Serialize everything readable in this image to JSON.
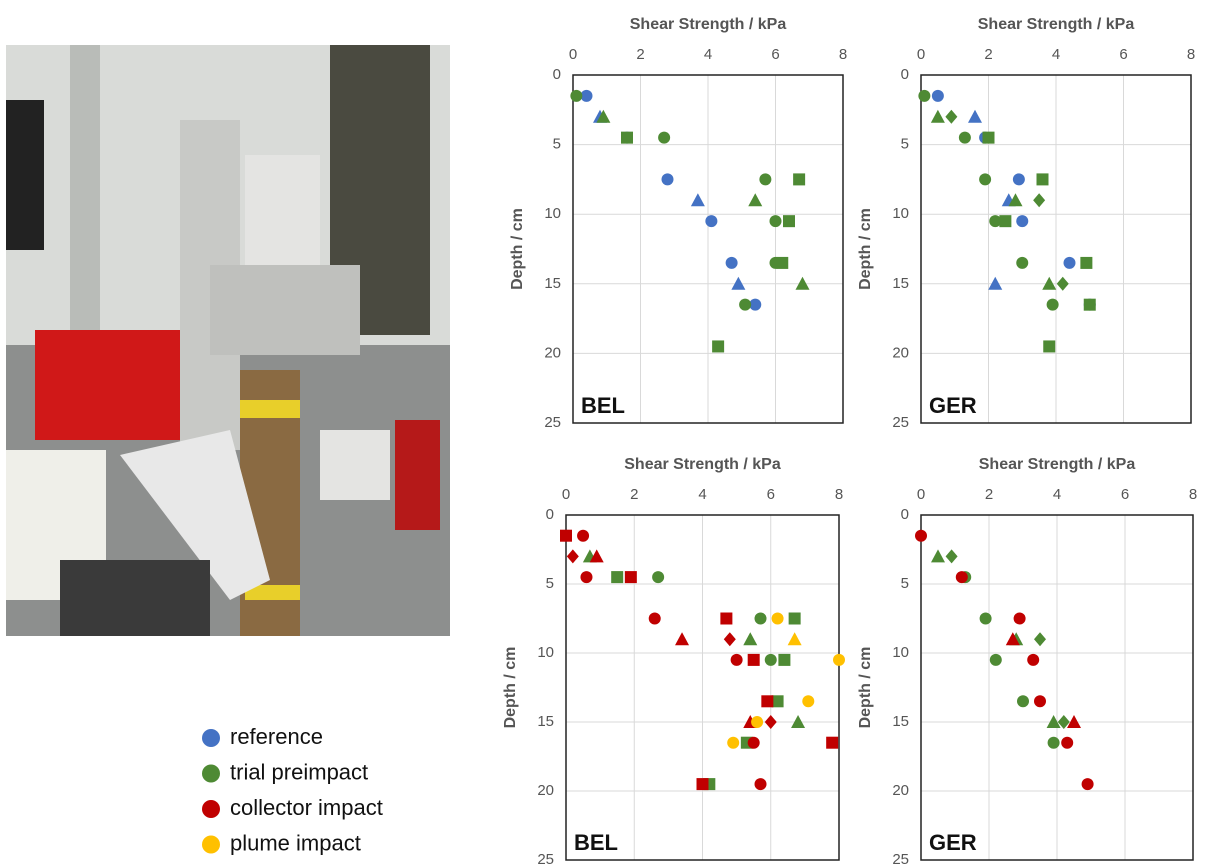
{
  "chart_data": [
    {
      "type": "scatter",
      "xlabel": "Shear Strength / kPa",
      "ylabel": "Depth / cm",
      "panel_label": "BEL",
      "xlim": [
        0,
        8
      ],
      "xticks": [
        0,
        2,
        4,
        6,
        8
      ],
      "ylim": [
        0,
        25
      ],
      "yticks": [
        0,
        5,
        10,
        15,
        20,
        25
      ],
      "y_inverted": true,
      "grid": true,
      "series": [
        {
          "color": "#4472c4",
          "marker": "circle",
          "x": [
            0.4,
            1.6,
            2.8,
            4.1,
            4.7,
            5.4
          ],
          "y": [
            1.5,
            4.5,
            7.5,
            10.5,
            13.5,
            16.5
          ]
        },
        {
          "color": "#4472c4",
          "marker": "triangle",
          "x": [
            0.8,
            3.7,
            4.9
          ],
          "y": [
            3,
            9,
            15
          ]
        },
        {
          "color": "#4e8a34",
          "marker": "circle",
          "x": [
            0.1,
            2.7,
            5.7,
            6.0,
            6.0,
            5.1
          ],
          "y": [
            1.5,
            4.5,
            7.5,
            10.5,
            13.5,
            16.5
          ]
        },
        {
          "color": "#4e8a34",
          "marker": "triangle",
          "x": [
            0.9,
            5.4,
            6.8
          ],
          "y": [
            3,
            9,
            15
          ]
        },
        {
          "color": "#4e8a34",
          "marker": "square",
          "x": [
            1.6,
            6.7,
            6.4,
            6.2,
            4.3
          ],
          "y": [
            4.5,
            7.5,
            10.5,
            13.5,
            19.5
          ]
        }
      ]
    },
    {
      "type": "scatter",
      "xlabel": "Shear Strength / kPa",
      "ylabel": "Depth / cm",
      "panel_label": "GER",
      "xlim": [
        0,
        8
      ],
      "xticks": [
        0,
        2,
        4,
        6,
        8
      ],
      "ylim": [
        0,
        25
      ],
      "yticks": [
        0,
        5,
        10,
        15,
        20,
        25
      ],
      "y_inverted": true,
      "grid": true,
      "series": [
        {
          "color": "#4472c4",
          "marker": "circle",
          "x": [
            0.5,
            1.9,
            2.9,
            3.0,
            4.4,
            5.0
          ],
          "y": [
            1.5,
            4.5,
            7.5,
            10.5,
            13.5,
            16.5
          ]
        },
        {
          "color": "#4472c4",
          "marker": "triangle",
          "x": [
            1.6,
            2.6,
            2.2
          ],
          "y": [
            3,
            9,
            15
          ]
        },
        {
          "color": "#4e8a34",
          "marker": "circle",
          "x": [
            0.1,
            1.3,
            1.9,
            2.2,
            3.0,
            3.9
          ],
          "y": [
            1.5,
            4.5,
            7.5,
            10.5,
            13.5,
            16.5
          ]
        },
        {
          "color": "#4e8a34",
          "marker": "triangle",
          "x": [
            0.5,
            2.8,
            3.8
          ],
          "y": [
            3,
            9,
            15
          ]
        },
        {
          "color": "#4e8a34",
          "marker": "diamond",
          "x": [
            0.9,
            3.5,
            4.2
          ],
          "y": [
            3,
            9,
            15
          ]
        },
        {
          "color": "#4e8a34",
          "marker": "square",
          "x": [
            2.0,
            3.6,
            2.5,
            4.9,
            5.0,
            3.8
          ],
          "y": [
            4.5,
            7.5,
            10.5,
            13.5,
            16.5,
            19.5
          ]
        }
      ]
    },
    {
      "type": "scatter",
      "xlabel": "Shear Strength / kPa",
      "ylabel": "Depth / cm",
      "panel_label": "BEL",
      "xlim": [
        0,
        8
      ],
      "xticks": [
        0,
        2,
        4,
        6,
        8
      ],
      "ylim": [
        0,
        25
      ],
      "yticks": [
        0,
        5,
        10,
        15,
        20,
        25
      ],
      "y_inverted": true,
      "grid": true,
      "series": [
        {
          "color": "#4e8a34",
          "marker": "circle",
          "x": [
            2.7,
            5.7,
            6.0
          ],
          "y": [
            4.5,
            7.5,
            10.5
          ]
        },
        {
          "color": "#4e8a34",
          "marker": "triangle",
          "x": [
            0.7,
            5.4,
            6.8
          ],
          "y": [
            3,
            9,
            15
          ]
        },
        {
          "color": "#4e8a34",
          "marker": "square",
          "x": [
            1.5,
            6.7,
            6.4,
            6.2,
            5.3,
            4.2
          ],
          "y": [
            4.5,
            7.5,
            10.5,
            13.5,
            16.5,
            19.5
          ]
        },
        {
          "color": "#c00000",
          "marker": "circle",
          "x": [
            0.5,
            0.6,
            2.6,
            5.0,
            5.5,
            5.7
          ],
          "y": [
            1.5,
            4.5,
            7.5,
            10.5,
            16.5,
            19.5
          ]
        },
        {
          "color": "#c00000",
          "marker": "square",
          "x": [
            0.0,
            1.9,
            4.7,
            5.5,
            5.9,
            7.8,
            4.0
          ],
          "y": [
            1.5,
            4.5,
            7.5,
            10.5,
            13.5,
            16.5,
            19.5
          ]
        },
        {
          "color": "#c00000",
          "marker": "triangle",
          "x": [
            0.9,
            3.4,
            5.4
          ],
          "y": [
            3,
            9,
            15
          ]
        },
        {
          "color": "#c00000",
          "marker": "diamond",
          "x": [
            0.2,
            4.8,
            6.0
          ],
          "y": [
            3,
            9,
            15
          ]
        },
        {
          "color": "#ffc000",
          "marker": "circle",
          "x": [
            6.2,
            8.0,
            7.1,
            5.6,
            4.9
          ],
          "y": [
            7.5,
            10.5,
            13.5,
            15,
            16.5
          ]
        },
        {
          "color": "#ffc000",
          "marker": "triangle",
          "x": [
            6.7
          ],
          "y": [
            9
          ]
        }
      ]
    },
    {
      "type": "scatter",
      "xlabel": "Shear Strength / kPa",
      "ylabel": "Depth / cm",
      "panel_label": "GER",
      "xlim": [
        0,
        8
      ],
      "xticks": [
        0,
        2,
        4,
        6,
        8
      ],
      "ylim": [
        0,
        25
      ],
      "yticks": [
        0,
        5,
        10,
        15,
        20,
        25
      ],
      "y_inverted": true,
      "grid": true,
      "series": [
        {
          "color": "#4e8a34",
          "marker": "circle",
          "x": [
            1.3,
            1.9,
            2.2,
            3.0,
            3.9
          ],
          "y": [
            4.5,
            7.5,
            10.5,
            13.5,
            16.5
          ]
        },
        {
          "color": "#4e8a34",
          "marker": "triangle",
          "x": [
            0.5,
            2.8,
            3.9
          ],
          "y": [
            3,
            9,
            15
          ]
        },
        {
          "color": "#4e8a34",
          "marker": "diamond",
          "x": [
            0.9,
            3.5,
            4.2
          ],
          "y": [
            3,
            9,
            15
          ]
        },
        {
          "color": "#c00000",
          "marker": "circle",
          "x": [
            0.0,
            1.2,
            2.9,
            3.3,
            3.5,
            4.3,
            4.9
          ],
          "y": [
            1.5,
            4.5,
            7.5,
            10.5,
            13.5,
            16.5,
            19.5
          ]
        },
        {
          "color": "#c00000",
          "marker": "triangle",
          "x": [
            2.7,
            4.5
          ],
          "y": [
            9,
            15
          ]
        }
      ]
    }
  ],
  "legend": [
    {
      "name": "reference",
      "color": "#4472c4"
    },
    {
      "name": "trial preimpact",
      "color": "#4e8a34"
    },
    {
      "name": "collector impact",
      "color": "#c00000"
    },
    {
      "name": "plume impact",
      "color": "#ffc000"
    }
  ]
}
